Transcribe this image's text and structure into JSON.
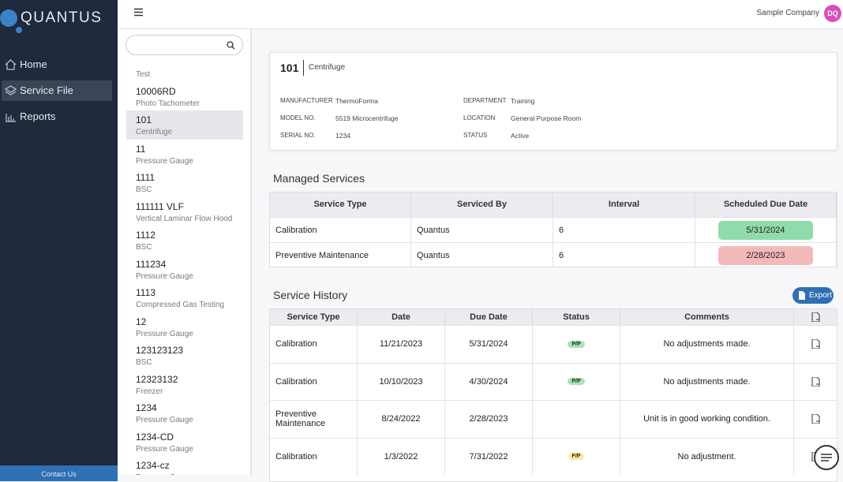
{
  "sidebar": {
    "logo": "QUANTUS",
    "nav": [
      "Home",
      "Service File",
      "Reports"
    ],
    "contact": "Contact Us"
  },
  "header": {
    "company": "Sample Company",
    "avatar": "DQ"
  },
  "equipment_list": [
    {
      "name": "Test"
    },
    {
      "id": "10006RD",
      "name": "Photo Tachometer"
    },
    {
      "id": "101",
      "name": "Centrifuge"
    },
    {
      "id": "11",
      "name": "Pressure Gauge"
    },
    {
      "id": "1111",
      "name": "BSC"
    },
    {
      "id": "111111 VLF",
      "name": "Vertical Laminar Flow Hood"
    },
    {
      "id": "1112",
      "name": "BSC"
    },
    {
      "id": "111234",
      "name": "Pressure Gauge"
    },
    {
      "id": "1113",
      "name": "Compressed Gas Testing"
    },
    {
      "id": "12",
      "name": "Pressure Gauge"
    },
    {
      "id": "123123123",
      "name": "BSC"
    },
    {
      "id": "12323132",
      "name": "Freezer"
    },
    {
      "id": "1234",
      "name": "Pressure Gauge"
    },
    {
      "id": "1234-CD",
      "name": "Pressure Gauge"
    },
    {
      "id": "1234-cz",
      "name": "Pressure Gauge"
    }
  ],
  "detail": {
    "id": "101",
    "name": "Centrifuge",
    "fields": [
      [
        {
          "label": "MANUFACTURER",
          "value": "ThermoForma"
        },
        {
          "label": "DEPARTMENT",
          "value": "Training"
        }
      ],
      [
        {
          "label": "MODEL NO.",
          "value": "5519 Microcentrifuge"
        },
        {
          "label": "LOCATION",
          "value": "General Purpose Room"
        }
      ],
      [
        {
          "label": "SERIAL NO.",
          "value": "1234"
        },
        {
          "label": "STATUS",
          "value": "Active"
        }
      ]
    ]
  },
  "managed_services": {
    "title": "Managed Services",
    "columns": [
      "Service Type",
      "Serviced By",
      "Interval",
      "Scheduled Due Date"
    ],
    "rows": [
      [
        "Calibration",
        "Quantus",
        "6",
        "5/31/2024"
      ],
      [
        "Preventive Maintenance",
        "Quantus",
        "6",
        "2/28/2023"
      ]
    ]
  },
  "service_history": {
    "title": "Service History",
    "export": "Export",
    "columns": [
      "Service Type",
      "Date",
      "Due Date",
      "Status",
      "Comments"
    ],
    "rows": [
      [
        "Calibration",
        "11/21/2023",
        "5/31/2024",
        "P/P",
        "No adjustments made."
      ],
      [
        "Calibration",
        "10/10/2023",
        "4/30/2024",
        "P/P",
        "No adjustments made."
      ],
      [
        "Preventive Maintenance",
        "8/24/2022",
        "2/28/2023",
        null,
        "Unit is in good working condition."
      ],
      [
        "Calibration",
        "1/3/2022",
        "7/31/2022",
        "F/P",
        "No adjustment."
      ]
    ]
  }
}
